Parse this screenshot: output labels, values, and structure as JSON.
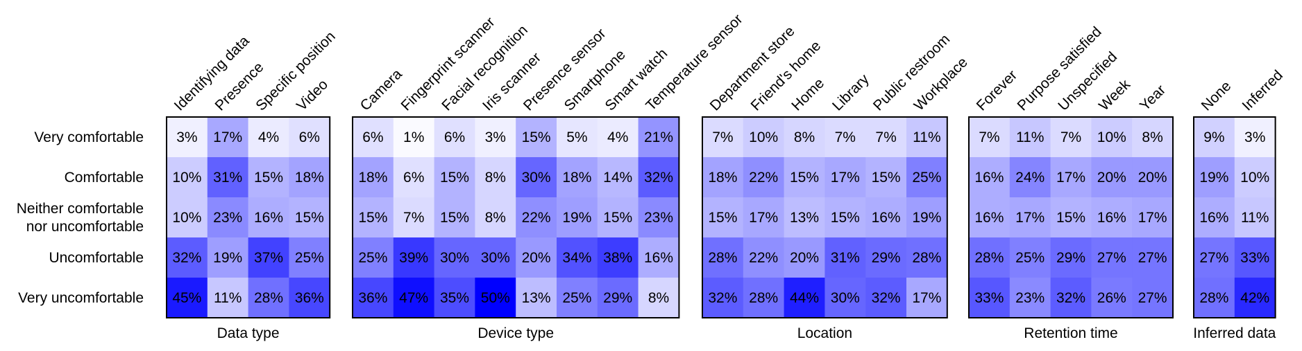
{
  "chart_data": {
    "type": "heatmap",
    "rows": [
      "Very comfortable",
      "Comfortable",
      "Neither comfortable nor uncomfortable",
      "Uncomfortable",
      "Very uncomfortable"
    ],
    "row_label_lines": [
      [
        "Very comfortable"
      ],
      [
        "Comfortable"
      ],
      [
        "Neither comfortable",
        "nor uncomfortable"
      ],
      [
        "Uncomfortable"
      ],
      [
        "Very uncomfortable"
      ]
    ],
    "value_range": [
      0,
      50
    ],
    "color_scale": {
      "low": "#ffffff",
      "high": "#0000ff"
    },
    "unit": "%",
    "groups": [
      {
        "title": "Data type",
        "columns": [
          "Identifying data",
          "Presence",
          "Specific position",
          "Video"
        ],
        "values": [
          [
            3,
            17,
            4,
            6
          ],
          [
            10,
            31,
            15,
            18
          ],
          [
            10,
            23,
            16,
            15
          ],
          [
            32,
            19,
            37,
            25
          ],
          [
            45,
            11,
            28,
            36
          ]
        ]
      },
      {
        "title": "Device type",
        "columns": [
          "Camera",
          "Fingerprint scanner",
          "Facial recognition",
          "Iris scanner",
          "Presence sensor",
          "Smartphone",
          "Smart watch",
          "Temperature sensor"
        ],
        "values": [
          [
            6,
            1,
            6,
            3,
            15,
            5,
            4,
            21
          ],
          [
            18,
            6,
            15,
            8,
            30,
            18,
            14,
            32
          ],
          [
            15,
            7,
            15,
            8,
            22,
            19,
            15,
            23
          ],
          [
            25,
            39,
            30,
            30,
            20,
            34,
            38,
            16
          ],
          [
            36,
            47,
            35,
            50,
            13,
            25,
            29,
            8
          ]
        ]
      },
      {
        "title": "Location",
        "columns": [
          "Department store",
          "Friend's home",
          "Home",
          "Library",
          "Public restroom",
          "Workplace"
        ],
        "values": [
          [
            7,
            10,
            8,
            7,
            7,
            11
          ],
          [
            18,
            22,
            15,
            17,
            15,
            25
          ],
          [
            15,
            17,
            13,
            15,
            16,
            19
          ],
          [
            28,
            22,
            20,
            31,
            29,
            28
          ],
          [
            32,
            28,
            44,
            30,
            32,
            17
          ]
        ]
      },
      {
        "title": "Retention time",
        "columns": [
          "Forever",
          "Purpose satisfied",
          "Unspecified",
          "Week",
          "Year"
        ],
        "values": [
          [
            7,
            11,
            7,
            10,
            8
          ],
          [
            16,
            24,
            17,
            20,
            20
          ],
          [
            16,
            17,
            15,
            16,
            17
          ],
          [
            28,
            25,
            29,
            27,
            27
          ],
          [
            33,
            23,
            32,
            26,
            27
          ]
        ]
      },
      {
        "title": "Inferred data",
        "columns": [
          "None",
          "Inferred"
        ],
        "values": [
          [
            9,
            3
          ],
          [
            19,
            10
          ],
          [
            16,
            11
          ],
          [
            27,
            33
          ],
          [
            28,
            42
          ]
        ]
      }
    ]
  }
}
